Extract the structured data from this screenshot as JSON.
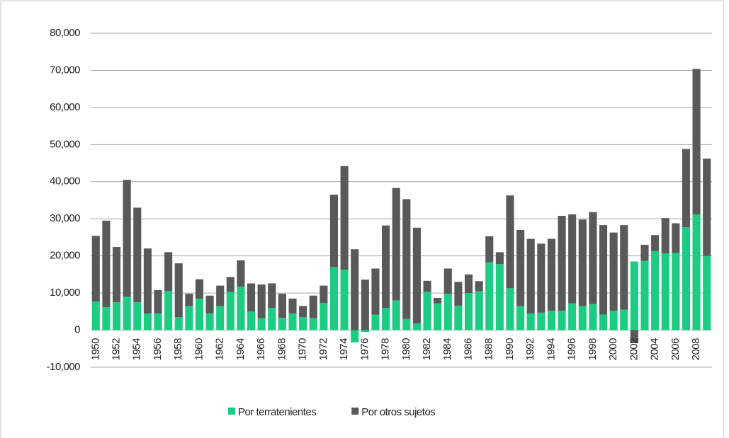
{
  "chart_data": {
    "type": "stacked-bar",
    "categories": [
      "1950",
      null,
      "1952",
      null,
      "1954",
      null,
      "1956",
      null,
      "1958",
      null,
      "1960",
      null,
      "1962",
      null,
      "1964",
      null,
      "1966",
      null,
      "1968",
      null,
      "1970",
      null,
      "1972",
      null,
      "1974",
      null,
      "1976",
      null,
      "1978",
      null,
      "1980",
      null,
      "1982",
      null,
      "1984",
      null,
      "1986",
      null,
      "1988",
      null,
      "1990",
      null,
      "1992",
      null,
      "1994",
      null,
      "1996",
      null,
      "1998",
      null,
      "2000",
      null,
      "2002",
      null,
      "2004",
      null,
      "2006",
      null,
      "2008",
      null
    ],
    "series": [
      {
        "name": "Por terratenientes",
        "color": "#1ccc82",
        "values": [
          7700,
          6200,
          7500,
          9000,
          7500,
          4500,
          4500,
          10500,
          3500,
          6500,
          8500,
          4500,
          6500,
          10300,
          11700,
          5000,
          3200,
          6000,
          3300,
          4500,
          3500,
          3200,
          7300,
          17000,
          16300,
          -3300,
          -500,
          4200,
          6000,
          8000,
          3000,
          1800,
          10300,
          7200,
          9800,
          6600,
          10000,
          10500,
          18300,
          17800,
          11300,
          6500,
          4500,
          4700,
          5200,
          5200,
          7200,
          6500,
          7000,
          4200,
          5200,
          5500,
          18500,
          18700,
          21300,
          20700,
          20800,
          27700,
          31200,
          20000
        ]
      },
      {
        "name": "Por otros sujetos",
        "color": "#595959",
        "values": [
          17700,
          23300,
          14900,
          31500,
          25500,
          17500,
          6300,
          10500,
          14500,
          3300,
          5200,
          4800,
          5500,
          4000,
          7100,
          7600,
          9100,
          6600,
          6500,
          4000,
          3000,
          6100,
          4700,
          19500,
          27900,
          21800,
          13600,
          12400,
          22200,
          30300,
          32300,
          25800,
          3000,
          1500,
          6800,
          6400,
          5000,
          2700,
          7000,
          3200,
          25000,
          20500,
          20100,
          18600,
          19400,
          25600,
          24000,
          23300,
          24800,
          24100,
          21100,
          22800,
          -3500,
          4300,
          4300,
          9500,
          8000,
          21100,
          39200,
          26200
        ]
      }
    ],
    "ylim": [
      -10000,
      80000
    ],
    "yticks": [
      {
        "value": -10000,
        "label": "-10,000"
      },
      0,
      {
        "value": 10000,
        "label": "10,000"
      },
      {
        "value": 20000,
        "label": "20,000"
      },
      {
        "value": 30000,
        "label": "30,000"
      },
      {
        "value": 40000,
        "label": "40,000"
      },
      {
        "value": 50000,
        "label": "50,000"
      },
      {
        "value": 60000,
        "label": "60,000"
      },
      {
        "value": 70000,
        "label": "70,000"
      },
      {
        "value": 80000,
        "label": "80,000"
      }
    ],
    "grid": true,
    "legend": "bottom"
  }
}
